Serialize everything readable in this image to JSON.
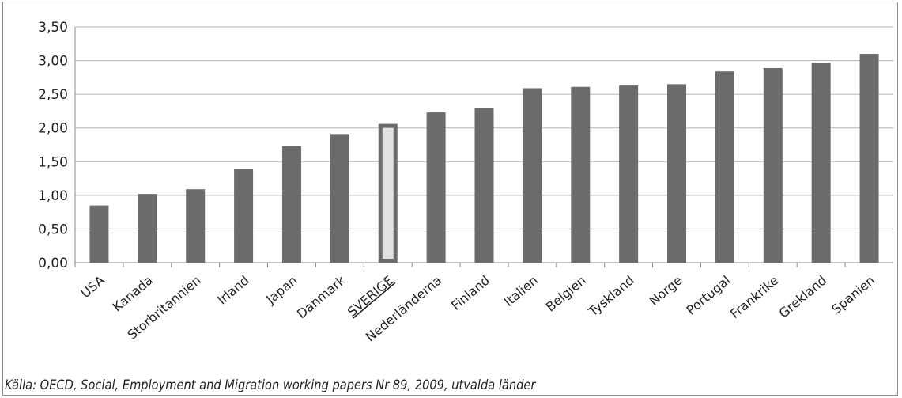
{
  "chart_data": {
    "type": "bar",
    "categories": [
      "USA",
      "Kanada",
      "Storbritannien",
      "Irland",
      "Japan",
      "Danmark",
      "SVERIGE",
      "Nederländerna",
      "Finland",
      "Italien",
      "Belgien",
      "Tyskland",
      "Norge",
      "Portugal",
      "Frankrike",
      "Grekland",
      "Spanien"
    ],
    "values": [
      0.85,
      1.02,
      1.09,
      1.39,
      1.73,
      1.91,
      2.06,
      2.23,
      2.3,
      2.59,
      2.61,
      2.63,
      2.65,
      2.84,
      2.89,
      2.97,
      3.1
    ],
    "highlight_category": "SVERIGE",
    "yticks": [
      "0,00",
      "0,50",
      "1,00",
      "1,50",
      "2,00",
      "2,50",
      "3,00",
      "3,50"
    ],
    "ylim": [
      0,
      3.5
    ],
    "grid": true,
    "colors": {
      "bar": "#6b6b6e",
      "highlight_fill": "#e2e2e2",
      "highlight_stroke": "#6b6b6e",
      "grid": "#b5b5b5",
      "axis": "#888888"
    },
    "title": "",
    "xlabel": "",
    "ylabel": ""
  },
  "source": "Källa: OECD, Social, Employment and Migration working papers Nr 89, 2009, utvalda länder"
}
